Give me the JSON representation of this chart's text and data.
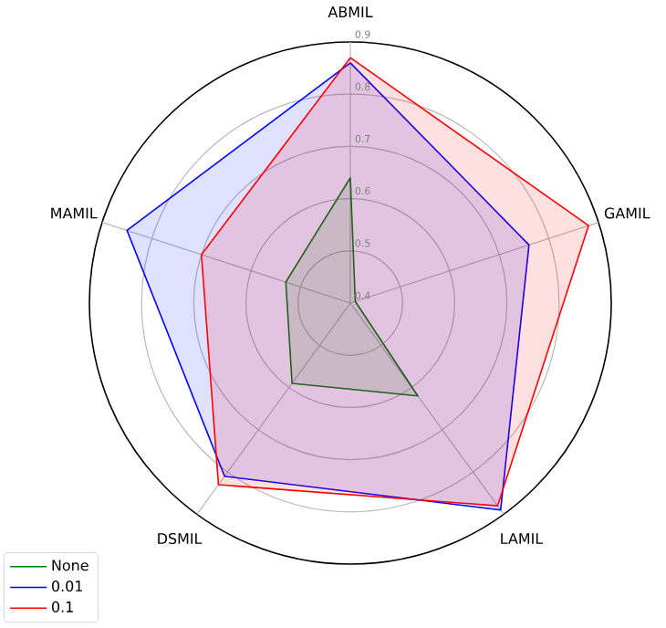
{
  "chart_data": {
    "type": "radar",
    "categories": [
      "ABMIL",
      "GAMIL",
      "LAMIL",
      "DSMIL",
      "MAMIL"
    ],
    "series": [
      {
        "name": "None",
        "color": "#008000",
        "values": [
          0.64,
          0.41,
          0.62,
          0.59,
          0.53
        ]
      },
      {
        "name": "0.01",
        "color": "#0000ff",
        "values": [
          0.86,
          0.76,
          0.89,
          0.81,
          0.85
        ]
      },
      {
        "name": "0.1",
        "color": "#ff0000",
        "values": [
          0.87,
          0.88,
          0.88,
          0.83,
          0.7
        ]
      }
    ],
    "ylim": [
      0.4,
      0.9
    ],
    "yticks": [
      0.4,
      0.5,
      0.6,
      0.7,
      0.8,
      0.9
    ],
    "grid": true,
    "legend": "bottom left"
  }
}
